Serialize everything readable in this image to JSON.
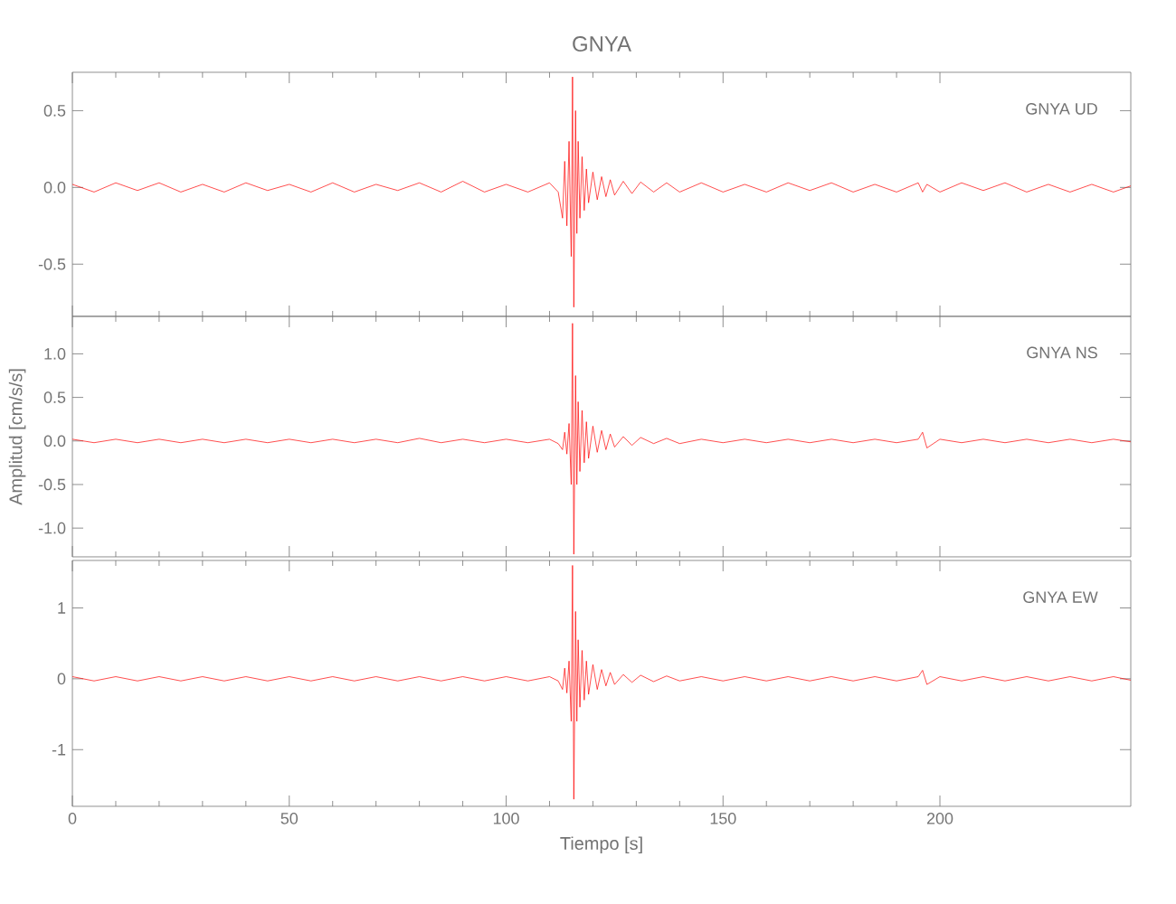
{
  "chart_data": [
    {
      "type": "line",
      "title": "GNYA",
      "annotations": [
        "GNYA UD"
      ],
      "tick_labels": "y",
      "xlim": [
        0,
        244
      ],
      "xticks": [
        0,
        50,
        100,
        150,
        200
      ],
      "ylim": [
        -0.84,
        0.75
      ],
      "yticks": [
        0.5,
        {
          "value": 0,
          "label": "0.0"
        },
        -0.5
      ],
      "x": [
        0,
        5,
        10,
        15,
        20,
        25,
        30,
        35,
        40,
        45,
        50,
        55,
        60,
        65,
        70,
        75,
        80,
        85,
        90,
        95,
        100,
        105,
        110,
        112,
        113,
        113.5,
        114,
        114.5,
        115,
        115.3,
        115.6,
        116,
        116.3,
        116.6,
        117,
        117.5,
        118,
        118.5,
        119,
        120,
        121,
        122,
        123,
        124,
        125,
        127,
        129,
        131,
        134,
        137,
        140,
        145,
        150,
        155,
        160,
        165,
        170,
        175,
        180,
        185,
        190,
        195,
        196,
        197,
        200,
        205,
        210,
        215,
        220,
        225,
        230,
        235,
        240,
        244
      ],
      "series": [
        {
          "color": "#ff0000",
          "values": [
            0.02,
            -0.03,
            0.03,
            -0.02,
            0.03,
            -0.03,
            0.02,
            -0.03,
            0.03,
            -0.02,
            0.02,
            -0.03,
            0.03,
            -0.03,
            0.02,
            -0.02,
            0.03,
            -0.03,
            0.04,
            -0.03,
            0.02,
            -0.03,
            0.03,
            -0.03,
            -0.2,
            0.17,
            -0.25,
            0.3,
            -0.45,
            0.72,
            -0.78,
            0.5,
            -0.3,
            0.3,
            -0.2,
            0.2,
            -0.15,
            0.12,
            -0.1,
            0.1,
            -0.08,
            0.07,
            -0.06,
            0.05,
            -0.05,
            0.04,
            -0.04,
            0.035,
            -0.03,
            0.03,
            -0.03,
            0.03,
            -0.03,
            0.02,
            -0.03,
            0.03,
            -0.02,
            0.03,
            -0.03,
            0.02,
            -0.03,
            0.03,
            -0.03,
            0.02,
            -0.03,
            0.03,
            -0.02,
            0.03,
            -0.03,
            0.02,
            -0.03,
            0.02,
            -0.03,
            0.01
          ]
        }
      ]
    },
    {
      "type": "line",
      "ylabel": "Amplitud [cm/s/s]",
      "annotations": [
        "GNYA NS"
      ],
      "tick_labels": "y",
      "xlim": [
        0,
        244
      ],
      "xticks": [
        0,
        50,
        100,
        150,
        200
      ],
      "ylim": [
        -1.33,
        1.43
      ],
      "yticks": [
        {
          "value": 1,
          "label": "1.0"
        },
        0.5,
        {
          "value": 0,
          "label": "0.0"
        },
        -0.5,
        {
          "value": -1,
          "label": "-1.0"
        }
      ],
      "x": [
        0,
        5,
        10,
        15,
        20,
        25,
        30,
        35,
        40,
        45,
        50,
        55,
        60,
        65,
        70,
        75,
        80,
        85,
        90,
        95,
        100,
        105,
        110,
        112,
        113,
        113.5,
        114,
        114.5,
        115,
        115.3,
        115.6,
        116,
        116.3,
        116.6,
        117,
        117.5,
        118,
        118.5,
        119,
        120,
        121,
        122,
        123,
        124,
        125,
        127,
        129,
        131,
        134,
        137,
        140,
        145,
        150,
        155,
        160,
        165,
        170,
        175,
        180,
        185,
        190,
        195,
        196,
        197,
        200,
        205,
        210,
        215,
        220,
        225,
        230,
        235,
        240,
        244
      ],
      "series": [
        {
          "color": "#ff0000",
          "values": [
            0.02,
            -0.02,
            0.02,
            -0.02,
            0.02,
            -0.02,
            0.02,
            -0.02,
            0.02,
            -0.02,
            0.02,
            -0.02,
            0.02,
            -0.02,
            0.02,
            -0.02,
            0.03,
            -0.02,
            0.02,
            -0.02,
            0.02,
            -0.02,
            0.02,
            -0.03,
            -0.1,
            0.1,
            -0.15,
            0.2,
            -0.5,
            1.35,
            -1.3,
            0.75,
            -0.5,
            0.45,
            -0.35,
            0.35,
            -0.25,
            0.22,
            -0.2,
            0.17,
            -0.13,
            0.12,
            -0.1,
            0.08,
            -0.07,
            0.05,
            -0.05,
            0.04,
            -0.03,
            0.03,
            -0.03,
            0.02,
            -0.02,
            0.02,
            -0.02,
            0.02,
            -0.02,
            0.02,
            -0.02,
            0.02,
            -0.02,
            0.02,
            0.1,
            -0.08,
            0.02,
            -0.02,
            0.02,
            -0.02,
            0.02,
            -0.02,
            0.02,
            -0.02,
            0.02,
            -0.01
          ]
        }
      ]
    },
    {
      "type": "line",
      "xlabel": "Tiempo [s]",
      "annotations": [
        "GNYA EW"
      ],
      "xlim": [
        0,
        244
      ],
      "xticks": [
        0,
        50,
        100,
        150,
        200
      ],
      "ylim": [
        -1.8,
        1.67
      ],
      "yticks": [
        1,
        0,
        -1
      ],
      "x": [
        0,
        5,
        10,
        15,
        20,
        25,
        30,
        35,
        40,
        45,
        50,
        55,
        60,
        65,
        70,
        75,
        80,
        85,
        90,
        95,
        100,
        105,
        110,
        112,
        113,
        113.5,
        114,
        114.5,
        115,
        115.3,
        115.6,
        116,
        116.3,
        116.6,
        117,
        117.5,
        118,
        118.5,
        119,
        120,
        121,
        122,
        123,
        124,
        125,
        127,
        129,
        131,
        134,
        137,
        140,
        145,
        150,
        155,
        160,
        165,
        170,
        175,
        180,
        185,
        190,
        195,
        196,
        197,
        200,
        205,
        210,
        215,
        220,
        225,
        230,
        235,
        240,
        244
      ],
      "series": [
        {
          "color": "#ff0000",
          "values": [
            0.03,
            -0.03,
            0.03,
            -0.03,
            0.03,
            -0.03,
            0.03,
            -0.03,
            0.03,
            -0.03,
            0.03,
            -0.03,
            0.03,
            -0.03,
            0.03,
            -0.03,
            0.03,
            -0.03,
            0.03,
            -0.03,
            0.03,
            -0.03,
            0.03,
            -0.03,
            -0.15,
            0.15,
            -0.2,
            0.25,
            -0.6,
            1.6,
            -1.7,
            0.95,
            -0.6,
            0.55,
            -0.4,
            0.4,
            -0.3,
            0.25,
            -0.22,
            0.2,
            -0.15,
            0.13,
            -0.1,
            0.09,
            -0.08,
            0.06,
            -0.05,
            0.05,
            -0.04,
            0.04,
            -0.03,
            0.03,
            -0.03,
            0.03,
            -0.03,
            0.03,
            -0.03,
            0.03,
            -0.03,
            0.03,
            -0.03,
            0.03,
            0.12,
            -0.08,
            0.03,
            -0.03,
            0.03,
            -0.03,
            0.03,
            -0.03,
            0.03,
            -0.03,
            0.03,
            -0.02
          ]
        }
      ]
    }
  ]
}
